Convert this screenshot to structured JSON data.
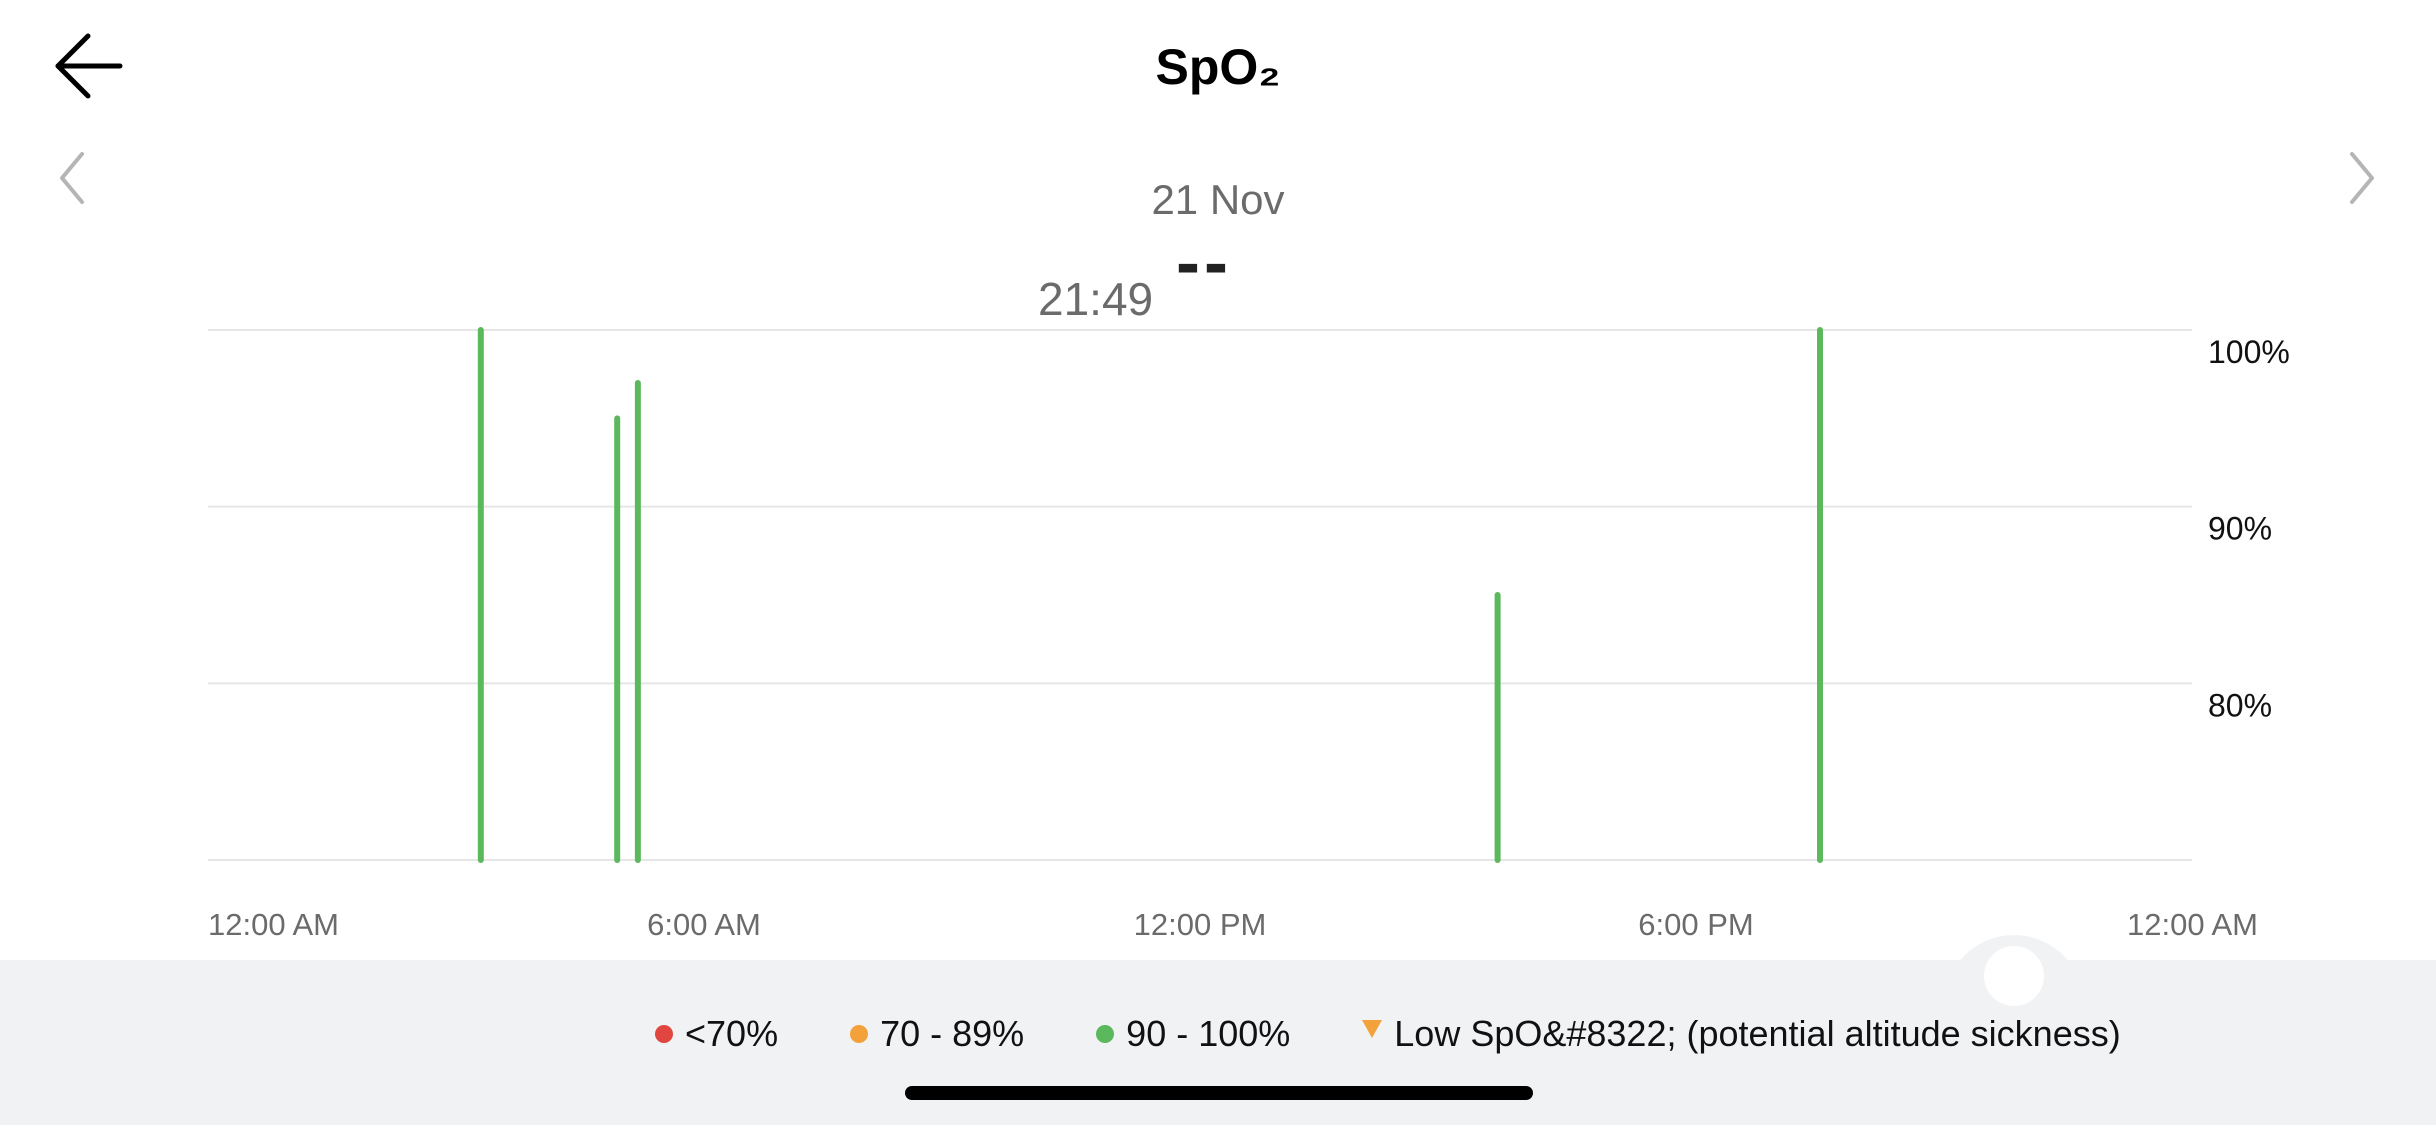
{
  "header": {
    "title": "SpO₂",
    "back_icon": "arrow-left-icon"
  },
  "date_nav": {
    "date": "21 Nov",
    "prev_icon": "chevron-left-icon",
    "next_icon": "chevron-right-icon"
  },
  "readout": {
    "time": "21:49",
    "value": "--"
  },
  "chart_data": {
    "type": "bar",
    "title": "",
    "xlabel": "",
    "ylabel": "",
    "x_ticks": [
      "12:00 AM",
      "6:00 AM",
      "12:00 PM",
      "6:00 PM",
      "12:00 AM"
    ],
    "y_ticks": [
      "100%",
      "90%",
      "80%"
    ],
    "x_range_hours": [
      0,
      24
    ],
    "ylim": [
      70,
      100
    ],
    "grid": true,
    "legend_placement": "bottom",
    "points": [
      {
        "hour": 3.3,
        "value": 100
      },
      {
        "hour": 4.95,
        "value": 95
      },
      {
        "hour": 5.2,
        "value": 97
      },
      {
        "hour": 15.6,
        "value": 85
      },
      {
        "hour": 19.5,
        "value": 100
      }
    ],
    "bar_color": "#5cb85c"
  },
  "legend": {
    "items": [
      {
        "label": "<70%",
        "color": "#e0463f",
        "marker": "dot"
      },
      {
        "label": "70 - 89%",
        "color": "#f3a13b",
        "marker": "dot"
      },
      {
        "label": "90 - 100%",
        "color": "#5cb85c",
        "marker": "dot"
      },
      {
        "label": "Low SpO&#8322; (potential altitude sickness)",
        "color": "#f3a13b",
        "marker": "triangle"
      }
    ]
  },
  "colors": {
    "grid": "#e6e6e6",
    "tick_label": "#6b6b6b",
    "y_tick_label": "#111111",
    "panel": "#f1f2f4"
  }
}
